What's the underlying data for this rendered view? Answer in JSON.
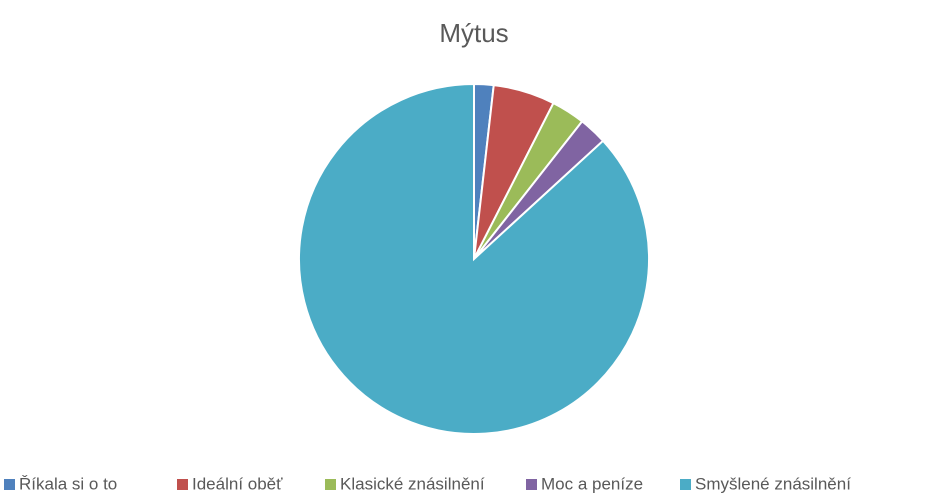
{
  "chart_data": {
    "type": "pie",
    "title": "Mýtus",
    "categories": [
      "Říkala si o to",
      "Ideální oběť",
      "Klasické znásilnění",
      "Moc a peníze",
      "Smyšlené znásilnění"
    ],
    "values": [
      1.8,
      5.7,
      3.1,
      2.6,
      86.8
    ],
    "colors": [
      "#4f81bd",
      "#c0504d",
      "#9bbb59",
      "#8064a2",
      "#4bacc6"
    ],
    "legend": "bottom"
  }
}
